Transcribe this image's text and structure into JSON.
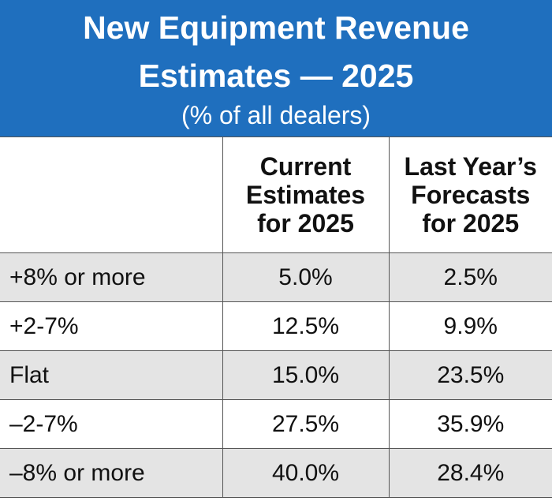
{
  "header": {
    "title_line1": "New Equipment Revenue",
    "title_line2": "Estimates — 2025",
    "subtitle": "(% of all dealers)"
  },
  "colors": {
    "header_bg": "#1f6fbe",
    "row_shade": "#e4e4e4"
  },
  "chart_data": {
    "type": "table",
    "title": "New Equipment Revenue Estimates — 2025",
    "subtitle": "(% of all dealers)",
    "columns": [
      {
        "lines": [
          "Current",
          "Estimates",
          "for 2025"
        ]
      },
      {
        "lines": [
          "Last Year’s",
          "Forecasts",
          "for 2025"
        ]
      }
    ],
    "rows": [
      {
        "label": "+8% or more",
        "values": [
          "5.0%",
          "2.5%"
        ]
      },
      {
        "label": "+2-7%",
        "values": [
          "12.5%",
          "9.9%"
        ]
      },
      {
        "label": "Flat",
        "values": [
          "15.0%",
          "23.5%"
        ]
      },
      {
        "label": "–2-7%",
        "values": [
          "27.5%",
          "35.9%"
        ]
      },
      {
        "label": "–8% or more",
        "values": [
          "40.0%",
          "28.4%"
        ]
      }
    ]
  }
}
